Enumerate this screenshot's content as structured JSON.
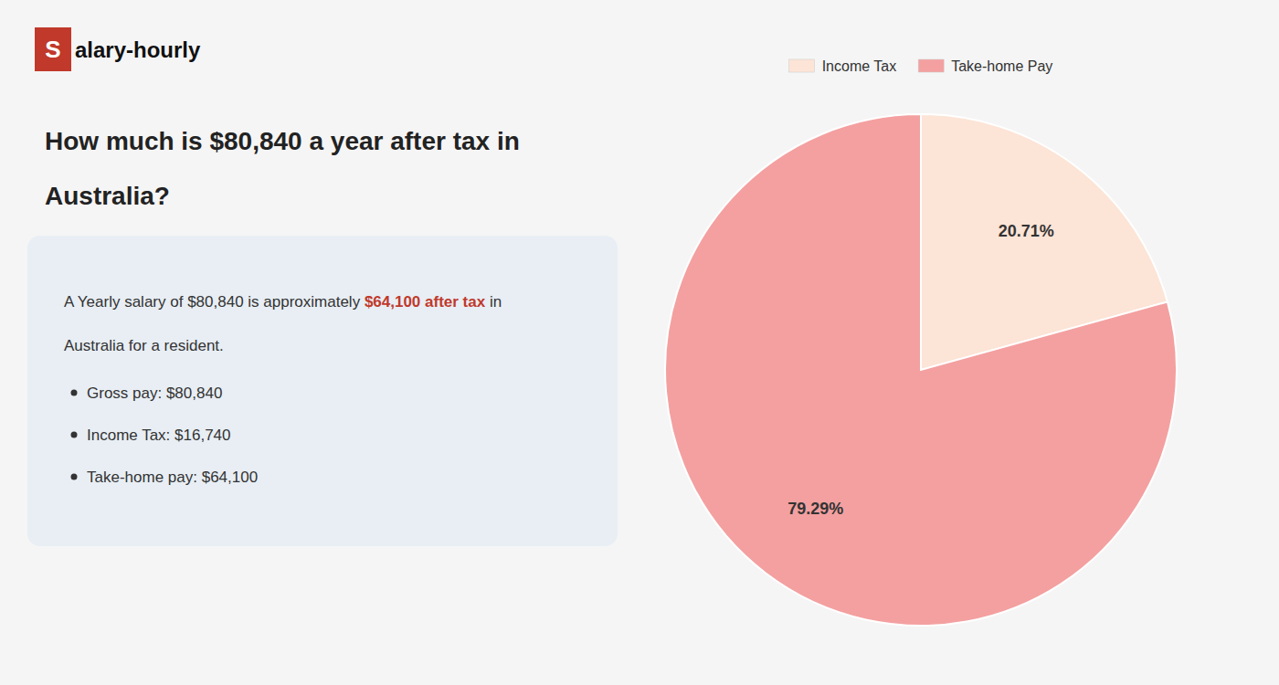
{
  "chart_data": {
    "type": "pie",
    "title": [
      "How much is $80,840 a year after tax in",
      "Australia?"
    ],
    "categories": [
      "Income Tax",
      "Take-home Pay"
    ],
    "values": [
      20.71,
      79.29
    ],
    "value_labels": [
      "20.71%",
      "79.29%"
    ],
    "colors": [
      "#fce4d6",
      "#f4a0a0"
    ],
    "data_labels": true,
    "legend": "top",
    "annotations": [
      {
        "text": "S",
        "color": "#c0392b"
      },
      {
        "text": "alary-hourly"
      },
      {
        "text": "A Yearly salary of $80,840 is approximately "
      },
      {
        "text": "$64,100 after tax",
        "color": "#c0392b"
      },
      {
        "text": " in"
      },
      {
        "text": "Australia for a resident."
      },
      {
        "text": "Gross pay: $80,840"
      },
      {
        "text": "Income Tax: $16,740"
      },
      {
        "text": "Take-home pay: $64,100"
      }
    ]
  }
}
